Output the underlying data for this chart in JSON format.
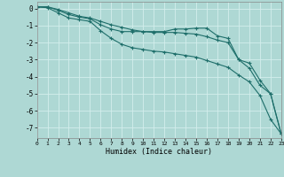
{
  "xlabel": "Humidex (Indice chaleur)",
  "xlim": [
    0,
    23
  ],
  "ylim": [
    -7.6,
    0.4
  ],
  "yticks": [
    0,
    -1,
    -2,
    -3,
    -4,
    -5,
    -6,
    -7
  ],
  "xtick_labels": [
    "0",
    "1",
    "2",
    "3",
    "4",
    "5",
    "6",
    "7",
    "8",
    "9",
    "10",
    "11",
    "12",
    "13",
    "14",
    "15",
    "16",
    "17",
    "18",
    "19",
    "20",
    "21",
    "22",
    "23"
  ],
  "bg_color": "#aed8d4",
  "grid_color": "#d4eeec",
  "line_color": "#1e6e6a",
  "series": [
    [
      0.1,
      0.1,
      -0.05,
      -0.25,
      -0.45,
      -0.55,
      -0.75,
      -0.95,
      -1.1,
      -1.25,
      -1.35,
      -1.35,
      -1.35,
      -1.2,
      -1.2,
      -1.15,
      -1.15,
      -1.6,
      -1.75,
      -3.0,
      -3.2,
      -4.2,
      -5.0,
      -7.35
    ],
    [
      0.1,
      0.1,
      -0.1,
      -0.35,
      -0.5,
      -0.6,
      -0.95,
      -1.2,
      -1.35,
      -1.35,
      -1.35,
      -1.4,
      -1.4,
      -1.4,
      -1.45,
      -1.5,
      -1.65,
      -1.85,
      -2.0,
      -3.0,
      -3.5,
      -4.5,
      -5.0,
      -7.35
    ],
    [
      0.1,
      0.05,
      -0.25,
      -0.55,
      -0.65,
      -0.75,
      -1.3,
      -1.75,
      -2.1,
      -2.3,
      -2.4,
      -2.5,
      -2.55,
      -2.65,
      -2.75,
      -2.85,
      -3.05,
      -3.25,
      -3.45,
      -3.9,
      -4.3,
      -5.1,
      -6.5,
      -7.35
    ]
  ]
}
